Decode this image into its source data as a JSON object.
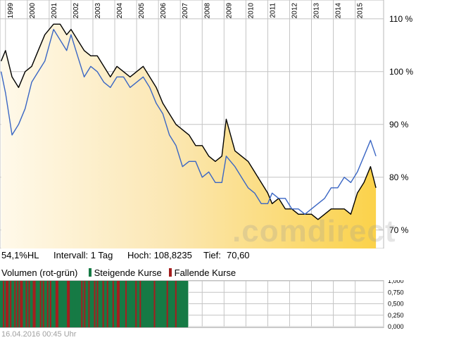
{
  "chart_data": [
    {
      "type": "line",
      "x_label_type": "year",
      "year_labels": [
        "1999",
        "2000",
        "2001",
        "2002",
        "2003",
        "2004",
        "2005",
        "2006",
        "2007",
        "2008",
        "2009",
        "2010",
        "2011",
        "2012",
        "2013",
        "2014",
        "2015"
      ],
      "y_tick_labels": [
        "110 %",
        "100 %",
        "90 %",
        "80 %",
        "70 %"
      ],
      "y_tick_values": [
        110,
        100,
        90,
        80,
        70
      ],
      "ylim": [
        66.5,
        112.5
      ],
      "xlim": [
        1998.75,
        2016.3
      ],
      "grid": true,
      "series": [
        {
          "color": "#000000",
          "fill": "yellow-gradient",
          "x": [
            1998.8,
            1999.0,
            1999.3,
            1999.6,
            1999.9,
            2000.2,
            2000.5,
            2000.8,
            2001.0,
            2001.2,
            2001.5,
            2001.8,
            2002.0,
            2002.3,
            2002.6,
            2002.9,
            2003.2,
            2003.5,
            2003.8,
            2004.1,
            2004.4,
            2004.7,
            2005.0,
            2005.3,
            2005.6,
            2005.9,
            2006.2,
            2006.5,
            2006.8,
            2007.1,
            2007.4,
            2007.7,
            2008.0,
            2008.3,
            2008.6,
            2008.9,
            2009.1,
            2009.3,
            2009.5,
            2009.8,
            2010.1,
            2010.4,
            2010.7,
            2011.0,
            2011.2,
            2011.5,
            2011.8,
            2012.1,
            2012.4,
            2012.7,
            2013.0,
            2013.3,
            2013.6,
            2013.9,
            2014.2,
            2014.5,
            2014.8,
            2015.1,
            2015.4,
            2015.7,
            2015.95
          ],
          "y": [
            102,
            104,
            99,
            97,
            100,
            101,
            104,
            107,
            108,
            109,
            109,
            107,
            108,
            106,
            104,
            103,
            103,
            101,
            99,
            101,
            100,
            99,
            100,
            101,
            99,
            97,
            94,
            92,
            90,
            89,
            88,
            86,
            86,
            84,
            83,
            84,
            91,
            88,
            85,
            84,
            83,
            81,
            79,
            77,
            75,
            76,
            74,
            74,
            73,
            73,
            73,
            72,
            73,
            74,
            74,
            74,
            73,
            77,
            79,
            82,
            78
          ]
        },
        {
          "color": "#3a66c4",
          "x": [
            1998.8,
            1999.0,
            1999.3,
            1999.6,
            1999.9,
            2000.2,
            2000.5,
            2000.8,
            2001.0,
            2001.2,
            2001.5,
            2001.8,
            2002.0,
            2002.3,
            2002.6,
            2002.9,
            2003.2,
            2003.5,
            2003.8,
            2004.1,
            2004.4,
            2004.7,
            2005.0,
            2005.3,
            2005.6,
            2005.9,
            2006.2,
            2006.5,
            2006.8,
            2007.1,
            2007.4,
            2007.7,
            2008.0,
            2008.3,
            2008.6,
            2008.9,
            2009.1,
            2009.3,
            2009.5,
            2009.8,
            2010.1,
            2010.4,
            2010.7,
            2011.0,
            2011.2,
            2011.5,
            2011.8,
            2012.1,
            2012.4,
            2012.7,
            2013.0,
            2013.3,
            2013.6,
            2013.9,
            2014.2,
            2014.5,
            2014.8,
            2015.1,
            2015.4,
            2015.7,
            2015.95
          ],
          "y": [
            100,
            96,
            88,
            90,
            93,
            98,
            100,
            102,
            105,
            108,
            106,
            104,
            107,
            103,
            99,
            101,
            100,
            98,
            97,
            99,
            99,
            97,
            98,
            99,
            97,
            94,
            92,
            88,
            86,
            82,
            83,
            83,
            80,
            81,
            79,
            79,
            84,
            83,
            82,
            80,
            78,
            77,
            75,
            75,
            77,
            76,
            76,
            74,
            74,
            73,
            74,
            75,
            76,
            78,
            78,
            80,
            79,
            81,
            84,
            87,
            84
          ]
        }
      ]
    },
    {
      "type": "bar",
      "subtype": "volume",
      "y_tick_labels": [
        "1,000",
        "0,750",
        "0,500",
        "0,250",
        "0,000"
      ],
      "y_tick_values": [
        1.0,
        0.75,
        0.5,
        0.25,
        0.0
      ],
      "ylim": [
        0,
        1
      ],
      "rising_color": "#167a45",
      "falling_color": "#a41e1e",
      "filled_fraction_of_axis": 0.49,
      "bars": [
        1,
        1,
        0,
        1,
        0,
        0,
        1,
        0,
        1,
        1,
        0,
        1,
        0,
        1,
        0,
        0,
        1,
        1,
        0,
        1,
        0,
        1,
        1,
        0,
        0,
        1,
        1,
        1,
        0,
        1,
        0,
        1,
        1,
        0,
        1,
        0,
        1,
        1,
        1,
        0,
        0,
        1,
        1,
        1,
        1,
        1,
        1,
        0,
        0,
        1,
        1,
        1,
        1,
        1,
        1,
        1,
        1,
        0,
        1,
        0,
        1,
        1,
        0,
        1,
        1,
        1,
        0,
        1,
        0,
        1,
        1,
        1,
        0,
        1,
        1,
        0,
        1,
        1,
        1,
        0,
        1,
        1,
        0,
        0,
        1,
        1,
        1,
        1,
        0,
        1,
        1,
        1,
        1,
        1,
        1,
        0,
        1,
        1,
        0,
        1,
        1,
        1,
        1,
        1,
        1,
        1,
        1,
        1,
        0,
        1,
        1,
        1,
        1,
        1,
        1,
        1,
        1,
        0,
        1,
        1,
        1,
        1,
        1,
        0,
        1,
        1,
        1,
        1,
        1,
        1,
        1,
        1
      ]
    }
  ],
  "info_bar": {
    "perf": "54,1%HL",
    "interval": "Intervall: 1 Tag",
    "high": "Hoch: 108,8235",
    "low_label": "Tief:",
    "low_value": "70,60"
  },
  "volume_legend": {
    "title": "Volumen (rot-grün)",
    "rising": "Steigende Kurse",
    "falling": "Fallende Kurse"
  },
  "watermark": ".comdirect",
  "footer": {
    "timestamp": "16.04.2016 00:45 Uhr"
  }
}
